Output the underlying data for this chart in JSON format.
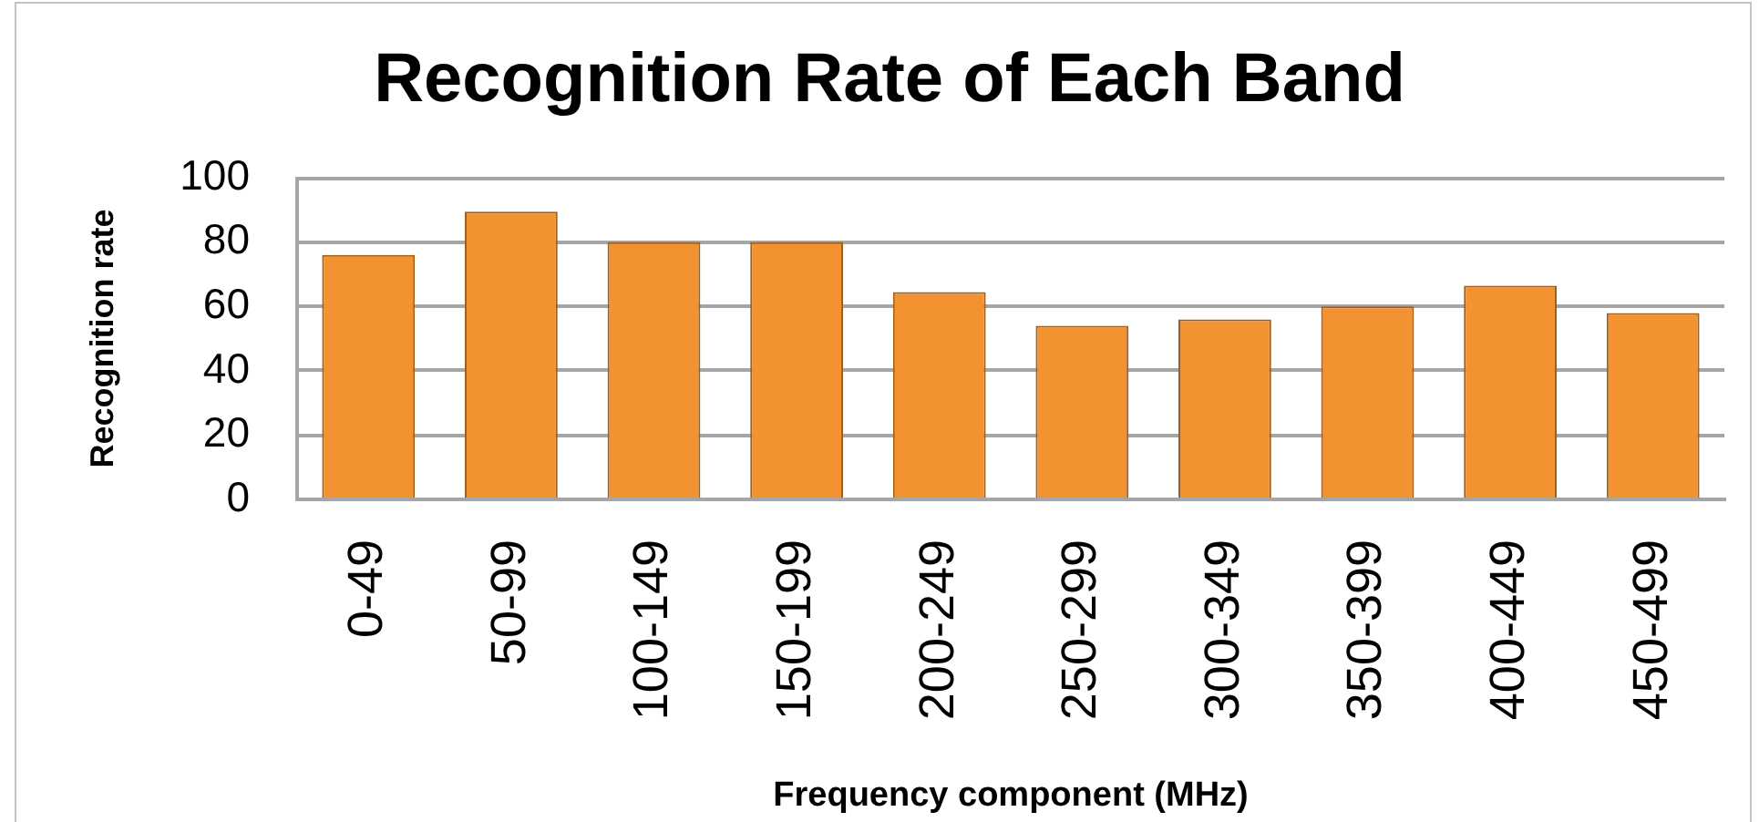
{
  "chart_data": {
    "type": "bar",
    "title": "Recognition Rate of Each Band",
    "xlabel": "Frequency component (MHz)",
    "ylabel": "Recognition rate",
    "categories": [
      "0-49",
      "50-99",
      "100-149",
      "150-199",
      "200-249",
      "250-299",
      "300-349",
      "350-399",
      "400-449",
      "450-499"
    ],
    "values": [
      76,
      89.5,
      80,
      80,
      64.5,
      54,
      56,
      60,
      66.5,
      58
    ],
    "color": "#f39230",
    "ylim": [
      0,
      100
    ],
    "yticks": [
      0,
      20,
      40,
      60,
      80,
      100
    ],
    "grid": "y"
  }
}
